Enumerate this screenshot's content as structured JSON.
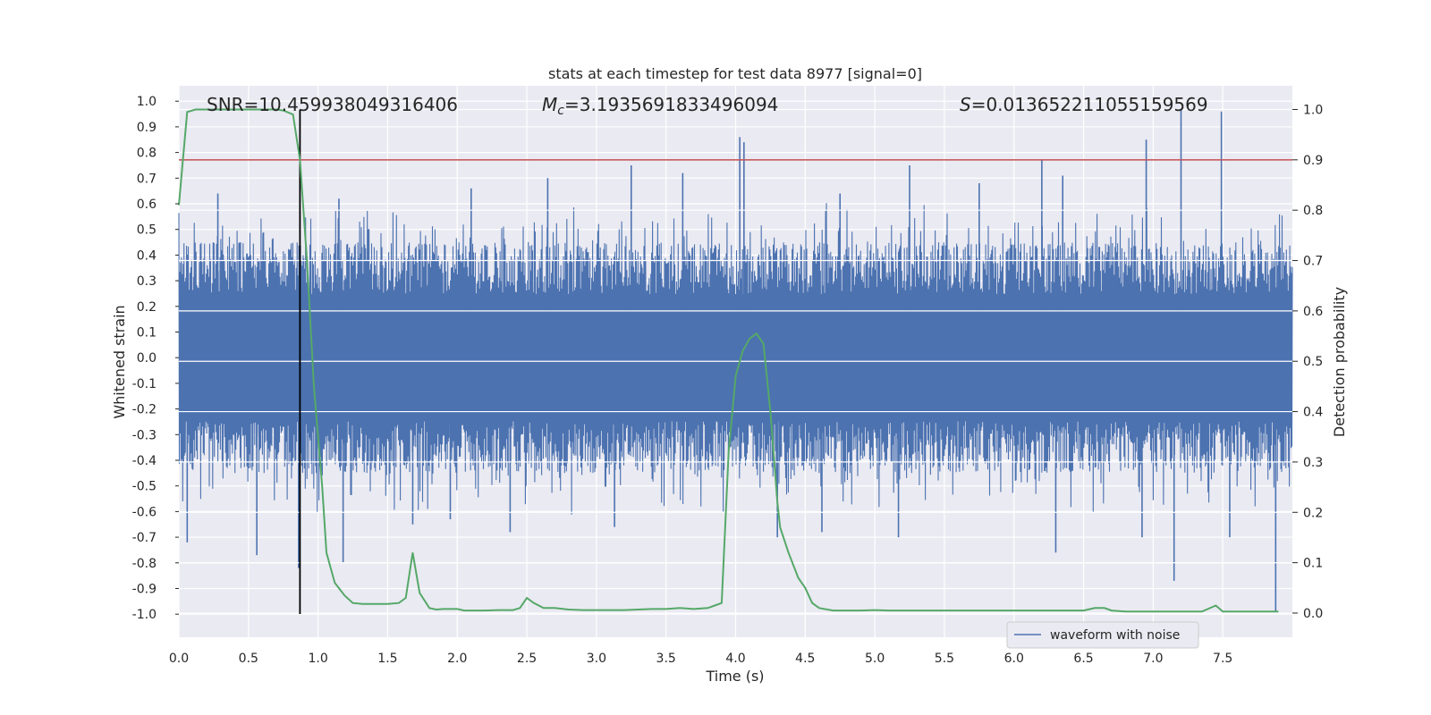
{
  "chart_data": {
    "type": "line",
    "title": "stats at each timestep for test data 8977 [signal=0]",
    "xlabel": "Time (s)",
    "ylabel": "Whitened strain",
    "y2label": "Detection probability",
    "xlim": [
      0.0,
      8.0
    ],
    "ylim": [
      -1.09,
      1.06
    ],
    "y2lim": [
      -0.048,
      1.047
    ],
    "xticks": [
      "0.0",
      "0.5",
      "1.0",
      "1.5",
      "2.0",
      "2.5",
      "3.0",
      "3.5",
      "4.0",
      "4.5",
      "5.0",
      "5.5",
      "6.0",
      "6.5",
      "7.0",
      "7.5"
    ],
    "yticks": [
      "1.0",
      "0.9",
      "0.8",
      "0.7",
      "0.6",
      "0.5",
      "0.4",
      "0.3",
      "0.2",
      "0.1",
      "0.0",
      "-0.1",
      "-0.2",
      "-0.3",
      "-0.4",
      "-0.5",
      "-0.6",
      "-0.7",
      "-0.8",
      "-0.9",
      "-1.0"
    ],
    "y2ticks": [
      "1.0",
      "0.9",
      "0.8",
      "0.7",
      "0.6",
      "0.5",
      "0.4",
      "0.3",
      "0.2",
      "0.1",
      "0.0"
    ],
    "annotations": {
      "snr": "SNR=10.459938049316406",
      "mc_symbol": "M",
      "mc_sub": "c",
      "mc_value": "=3.1935691833496094",
      "s_symbol": "S",
      "s_value": "=0.013652211055159569"
    },
    "threshold": {
      "value": 0.9,
      "axis": "detection probability",
      "color": "#c44e52"
    },
    "marker_time": 0.87,
    "legend": {
      "label": "waveform with noise",
      "location": "lower-right"
    },
    "series": [
      {
        "name": "waveform with noise",
        "axis": "strain",
        "color": "#4c72b0",
        "envelope_typical": [
          -0.45,
          0.45
        ],
        "spikes": [
          {
            "x": 0.06,
            "y": -0.72
          },
          {
            "x": 0.28,
            "y": 0.64
          },
          {
            "x": 0.56,
            "y": -0.77
          },
          {
            "x": 0.86,
            "y": -0.82
          },
          {
            "x": 1.18,
            "y": -0.8
          },
          {
            "x": 1.15,
            "y": 0.62
          },
          {
            "x": 1.68,
            "y": -0.65
          },
          {
            "x": 1.95,
            "y": -0.63
          },
          {
            "x": 2.1,
            "y": 0.66
          },
          {
            "x": 2.38,
            "y": -0.68
          },
          {
            "x": 2.65,
            "y": 0.7
          },
          {
            "x": 3.13,
            "y": -0.66
          },
          {
            "x": 3.25,
            "y": 0.75
          },
          {
            "x": 3.62,
            "y": 0.72
          },
          {
            "x": 4.03,
            "y": 0.86
          },
          {
            "x": 4.06,
            "y": 0.84
          },
          {
            "x": 4.3,
            "y": -0.7
          },
          {
            "x": 4.75,
            "y": 0.64
          },
          {
            "x": 4.62,
            "y": -0.68
          },
          {
            "x": 5.17,
            "y": -0.7
          },
          {
            "x": 5.25,
            "y": 0.75
          },
          {
            "x": 5.75,
            "y": 0.68
          },
          {
            "x": 6.2,
            "y": 0.77
          },
          {
            "x": 6.3,
            "y": -0.76
          },
          {
            "x": 6.35,
            "y": 0.71
          },
          {
            "x": 6.92,
            "y": -0.7
          },
          {
            "x": 6.95,
            "y": 0.85
          },
          {
            "x": 7.15,
            "y": -0.87
          },
          {
            "x": 7.2,
            "y": 0.97
          },
          {
            "x": 7.49,
            "y": 0.96
          },
          {
            "x": 7.55,
            "y": -0.7
          },
          {
            "x": 7.88,
            "y": -0.99
          }
        ]
      },
      {
        "name": "detection probability",
        "axis": "probability",
        "color": "#55a868",
        "x": [
          0.0,
          0.06,
          0.12,
          0.2,
          0.3,
          0.4,
          0.5,
          0.6,
          0.7,
          0.75,
          0.82,
          0.87,
          0.92,
          0.97,
          1.03,
          1.06,
          1.12,
          1.19,
          1.25,
          1.32,
          1.4,
          1.5,
          1.58,
          1.63,
          1.68,
          1.73,
          1.8,
          1.85,
          1.9,
          2.0,
          2.05,
          2.1,
          2.2,
          2.3,
          2.4,
          2.45,
          2.5,
          2.55,
          2.62,
          2.7,
          2.8,
          2.9,
          3.0,
          3.1,
          3.2,
          3.3,
          3.4,
          3.5,
          3.6,
          3.7,
          3.8,
          3.85,
          3.9,
          3.95,
          4.0,
          4.05,
          4.1,
          4.15,
          4.2,
          4.25,
          4.3,
          4.32,
          4.38,
          4.45,
          4.5,
          4.55,
          4.6,
          4.7,
          4.8,
          4.9,
          5.0,
          5.1,
          5.2,
          5.3,
          5.4,
          5.5,
          5.6,
          5.7,
          5.8,
          5.9,
          6.0,
          6.1,
          6.2,
          6.3,
          6.4,
          6.5,
          6.58,
          6.65,
          6.7,
          6.8,
          6.9,
          7.0,
          7.1,
          7.2,
          7.3,
          7.35,
          7.45,
          7.5,
          7.6,
          7.7,
          7.8,
          7.9
        ],
        "y": [
          0.81,
          0.995,
          1.0,
          1.0,
          1.0,
          1.0,
          1.0,
          1.0,
          1.0,
          0.998,
          0.99,
          0.9,
          0.7,
          0.45,
          0.25,
          0.12,
          0.06,
          0.035,
          0.02,
          0.018,
          0.018,
          0.018,
          0.02,
          0.03,
          0.12,
          0.04,
          0.01,
          0.007,
          0.008,
          0.008,
          0.005,
          0.005,
          0.005,
          0.006,
          0.006,
          0.01,
          0.03,
          0.02,
          0.01,
          0.01,
          0.007,
          0.006,
          0.006,
          0.006,
          0.006,
          0.007,
          0.008,
          0.008,
          0.01,
          0.008,
          0.01,
          0.015,
          0.02,
          0.32,
          0.47,
          0.52,
          0.545,
          0.555,
          0.535,
          0.4,
          0.22,
          0.17,
          0.12,
          0.07,
          0.05,
          0.02,
          0.01,
          0.005,
          0.005,
          0.005,
          0.006,
          0.005,
          0.005,
          0.005,
          0.005,
          0.005,
          0.005,
          0.005,
          0.005,
          0.005,
          0.005,
          0.005,
          0.005,
          0.005,
          0.005,
          0.005,
          0.01,
          0.01,
          0.005,
          0.003,
          0.003,
          0.003,
          0.003,
          0.003,
          0.003,
          0.003,
          0.015,
          0.003,
          0.003,
          0.003,
          0.003,
          0.003
        ]
      }
    ]
  }
}
